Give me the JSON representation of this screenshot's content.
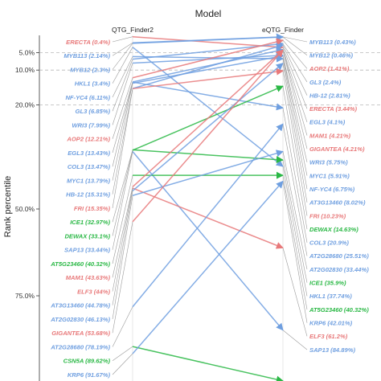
{
  "chart_data": {
    "type": "slope",
    "title": "Model",
    "ylabel": "Rank percentile",
    "columns": [
      "QTG_Finder2",
      "eQTG_Finder"
    ],
    "yticks": [
      "5.0%",
      "10.0%",
      "20.0%",
      "50.0%",
      "75.0%"
    ],
    "ytick_values": [
      5,
      10,
      20,
      50,
      75
    ],
    "reference_lines": [
      5,
      10,
      20
    ],
    "ylim": [
      0,
      100
    ],
    "colors": {
      "red": "#e8797a",
      "blue": "#6f9fe0",
      "green": "#2ab845"
    },
    "genes": [
      {
        "name": "ERECTA",
        "color": "red",
        "left_label": "ERECTA (0.4%)",
        "left": 0.4,
        "right_label": "ERECTA (3.44%)",
        "right": 3.44
      },
      {
        "name": "MYB113",
        "color": "blue",
        "left_label": "MYB113 (2.14%)",
        "left": 2.14,
        "right_label": "MYB113 (0.43%)",
        "right": 0.43
      },
      {
        "name": "MYB12",
        "color": "blue",
        "left_label": "MYB12 (2.3%)",
        "left": 2.3,
        "right_label": "MYB12 (0.46%)",
        "right": 0.46
      },
      {
        "name": "HKL1",
        "color": "blue",
        "left_label": "HKL1 (3.4%)",
        "left": 3.4,
        "right_label": "HKL1 (37.74%)",
        "right": 37.74
      },
      {
        "name": "NF-YC4",
        "color": "blue",
        "left_label": "NF-YC4 (6.11%)",
        "left": 6.11,
        "right_label": "NF-YC4 (6.75%)",
        "right": 6.75
      },
      {
        "name": "GL3",
        "color": "blue",
        "left_label": "GL3 (6.85%)",
        "left": 6.85,
        "right_label": "GL3 (2.4%)",
        "right": 2.4
      },
      {
        "name": "WRI3",
        "color": "blue",
        "left_label": "WRI3 (7.99%)",
        "left": 7.99,
        "right_label": "WRI3 (5.75%)",
        "right": 5.75
      },
      {
        "name": "AOP2",
        "color": "red",
        "left_label": "AOP2 (12.21%)",
        "left": 12.21,
        "right_label": "AOP2 (1.41%)",
        "right": 1.41
      },
      {
        "name": "EGL3",
        "color": "blue",
        "left_label": "EGL3 (13.43%)",
        "left": 13.43,
        "right_label": "EGL3 (4.1%)",
        "right": 4.1
      },
      {
        "name": "COL3",
        "color": "blue",
        "left_label": "COL3 (13.47%)",
        "left": 13.47,
        "right_label": "COL3 (20.9%)",
        "right": 20.9
      },
      {
        "name": "MYC1",
        "color": "blue",
        "left_label": "MYC1 (13.79%)",
        "left": 13.79,
        "right_label": "MYC1 (5.91%)",
        "right": 5.91
      },
      {
        "name": "HB-12",
        "color": "blue",
        "left_label": "HB-12 (15.31%)",
        "left": 15.31,
        "right_label": "HB-12 (2.81%)",
        "right": 2.81
      },
      {
        "name": "FRI",
        "color": "red",
        "left_label": "FRI (15.35%)",
        "left": 15.35,
        "right_label": "FRI (10.23%)",
        "right": 10.23
      },
      {
        "name": "ICE1",
        "color": "green",
        "left_label": "ICE1 (32.97%)",
        "left": 32.97,
        "right_label": "ICE1 (35.9%)",
        "right": 35.9
      },
      {
        "name": "DEWAX",
        "color": "green",
        "left_label": "DEWAX (33.1%)",
        "left": 33.1,
        "right_label": "DEWAX (14.63%)",
        "right": 14.63
      },
      {
        "name": "SAP13",
        "color": "blue",
        "left_label": "SAP13 (33.44%)",
        "left": 33.44,
        "right_label": "SAP13 (84.89%)",
        "right": 84.89
      },
      {
        "name": "AT5G23460",
        "color": "green",
        "left_label": "AT5G23460 (40.32%)",
        "left": 40.32,
        "right_label": "AT5G23460 (40.32%)",
        "right": 40.32
      },
      {
        "name": "MAM1",
        "color": "red",
        "left_label": "MAM1 (43.63%)",
        "left": 43.63,
        "right_label": "MAM1 (4.21%)",
        "right": 4.21
      },
      {
        "name": "ELF3",
        "color": "red",
        "left_label": "ELF3 (44%)",
        "left": 44,
        "right_label": "ELF3 (61.2%)",
        "right": 61.2
      },
      {
        "name": "AT3G13460",
        "color": "blue",
        "left_label": "AT3G13460 (44.78%)",
        "left": 44.78,
        "right_label": "AT3G13460 (8.02%)",
        "right": 8.02
      },
      {
        "name": "AT2G02830",
        "color": "blue",
        "left_label": "AT2G02830 (46.13%)",
        "left": 46.13,
        "right_label": "AT2G02830 (33.44%)",
        "right": 33.44
      },
      {
        "name": "GIGANTEA",
        "color": "red",
        "left_label": "GIGANTEA (53.68%)",
        "left": 53.68,
        "right_label": "GIGANTEA (4.21%)",
        "right": 4.21
      },
      {
        "name": "AT2G28680",
        "color": "blue",
        "left_label": "AT2G28680 (78.19%)",
        "left": 78.19,
        "right_label": "AT2G28680 (25.51%)",
        "right": 25.51
      },
      {
        "name": "CSN5A",
        "color": "green",
        "left_label": "CSN5A (89.62%)",
        "left": 89.62,
        "right_label": "",
        "right": 99.5
      },
      {
        "name": "KRP6",
        "color": "blue",
        "left_label": "KRP6 (91.67%)",
        "left": 91.67,
        "right_label": "KRP6 (42.01%)",
        "right": 42.01
      }
    ]
  }
}
